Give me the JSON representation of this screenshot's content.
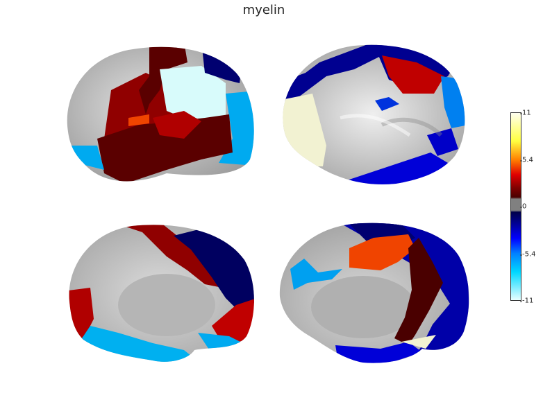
{
  "title": "myelin",
  "colorbar": {
    "ticks": [
      "11",
      "5.4",
      "0",
      "-5.4",
      "-11"
    ]
  },
  "colors": {
    "dark_red": "#4a0000",
    "red": "#a00000",
    "orange": "#f04400",
    "light_cyan": "#d8fbfb",
    "cyan": "#00aaf0",
    "navy": "#000070",
    "blue": "#0000c8",
    "cream": "#f2f2d2",
    "gray": "#bdbdbd"
  }
}
